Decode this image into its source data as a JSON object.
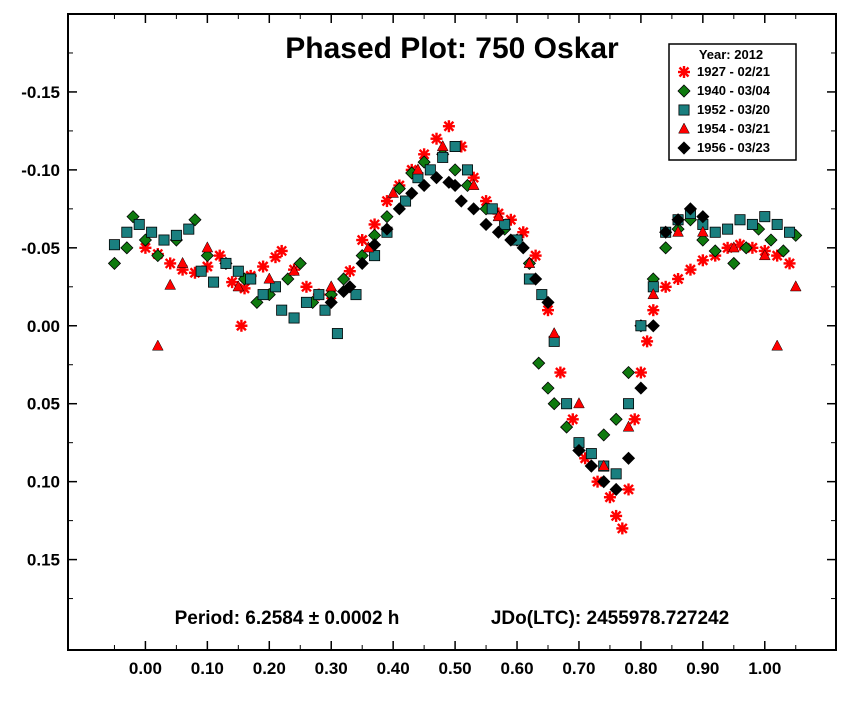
{
  "chart_data": {
    "type": "scatter",
    "title": "Phased Plot: 750 Oskar",
    "xlabel": "",
    "ylabel": "",
    "xlim": [
      -0.125,
      1.115
    ],
    "ylim": [
      0.208,
      -0.2
    ],
    "y_inverted": true,
    "x_ticks": [
      0.0,
      0.1,
      0.2,
      0.3,
      0.4,
      0.5,
      0.6,
      0.7,
      0.8,
      0.9,
      1.0
    ],
    "x_tick_labels": [
      "0.00",
      "0.10",
      "0.20",
      "0.30",
      "0.40",
      "0.50",
      "0.60",
      "0.70",
      "0.80",
      "0.90",
      "1.00"
    ],
    "y_ticks": [
      -0.15,
      -0.1,
      -0.05,
      0.0,
      0.05,
      0.1,
      0.15
    ],
    "y_tick_labels": [
      "-0.15",
      "-0.10",
      "-0.05",
      "0.00",
      "0.05",
      "0.10",
      "0.15"
    ],
    "grid": false,
    "legend": {
      "title": "Year: 2012",
      "placement": "top-right"
    },
    "annotations": {
      "period": "Period: 6.2584 ± 0.0002 h",
      "epoch": "JDo(LTC): 2455978.727242"
    },
    "series": [
      {
        "name": "1927 - 02/21",
        "marker": "asterisk",
        "color": "#ff0000",
        "points": [
          [
            0.0,
            -0.05
          ],
          [
            0.02,
            -0.046
          ],
          [
            0.04,
            -0.04
          ],
          [
            0.06,
            -0.036
          ],
          [
            0.08,
            -0.034
          ],
          [
            0.1,
            -0.038
          ],
          [
            0.12,
            -0.045
          ],
          [
            0.14,
            -0.028
          ],
          [
            0.16,
            -0.024
          ],
          [
            0.17,
            -0.032
          ],
          [
            0.19,
            -0.038
          ],
          [
            0.21,
            -0.044
          ],
          [
            0.22,
            -0.048
          ],
          [
            0.24,
            -0.036
          ],
          [
            0.26,
            -0.025
          ],
          [
            0.28,
            -0.02
          ],
          [
            0.3,
            -0.02
          ],
          [
            0.33,
            -0.035
          ],
          [
            0.35,
            -0.055
          ],
          [
            0.37,
            -0.065
          ],
          [
            0.39,
            -0.08
          ],
          [
            0.41,
            -0.09
          ],
          [
            0.43,
            -0.1
          ],
          [
            0.45,
            -0.11
          ],
          [
            0.47,
            -0.12
          ],
          [
            0.49,
            -0.128
          ],
          [
            0.51,
            -0.115
          ],
          [
            0.53,
            -0.095
          ],
          [
            0.55,
            -0.08
          ],
          [
            0.57,
            -0.072
          ],
          [
            0.59,
            -0.068
          ],
          [
            0.61,
            -0.06
          ],
          [
            0.63,
            -0.045
          ],
          [
            0.65,
            -0.01
          ],
          [
            0.67,
            0.03
          ],
          [
            0.69,
            0.06
          ],
          [
            0.71,
            0.085
          ],
          [
            0.73,
            0.1
          ],
          [
            0.75,
            0.11
          ],
          [
            0.76,
            0.122
          ],
          [
            0.77,
            0.13
          ],
          [
            0.78,
            0.105
          ],
          [
            0.79,
            0.06
          ],
          [
            0.8,
            0.03
          ],
          [
            0.81,
            0.01
          ],
          [
            0.82,
            -0.01
          ],
          [
            0.84,
            -0.025
          ],
          [
            0.86,
            -0.03
          ],
          [
            0.88,
            -0.036
          ],
          [
            0.9,
            -0.042
          ],
          [
            0.92,
            -0.045
          ],
          [
            0.94,
            -0.05
          ],
          [
            0.96,
            -0.052
          ],
          [
            0.98,
            -0.05
          ],
          [
            1.0,
            -0.048
          ],
          [
            1.02,
            -0.045
          ],
          [
            1.04,
            -0.04
          ],
          [
            0.155,
            0.0
          ]
        ]
      },
      {
        "name": "1940 - 03/04",
        "marker": "diamond",
        "color": "#0f7a0f",
        "points": [
          [
            -0.05,
            -0.04
          ],
          [
            -0.03,
            -0.05
          ],
          [
            -0.02,
            -0.07
          ],
          [
            0.0,
            -0.055
          ],
          [
            0.02,
            -0.045
          ],
          [
            0.05,
            -0.055
          ],
          [
            0.08,
            -0.068
          ],
          [
            0.1,
            -0.045
          ],
          [
            0.13,
            -0.04
          ],
          [
            0.16,
            -0.03
          ],
          [
            0.18,
            -0.015
          ],
          [
            0.2,
            -0.02
          ],
          [
            0.23,
            -0.03
          ],
          [
            0.25,
            -0.04
          ],
          [
            0.27,
            -0.015
          ],
          [
            0.3,
            -0.02
          ],
          [
            0.32,
            -0.03
          ],
          [
            0.35,
            -0.045
          ],
          [
            0.37,
            -0.058
          ],
          [
            0.39,
            -0.07
          ],
          [
            0.41,
            -0.088
          ],
          [
            0.43,
            -0.098
          ],
          [
            0.45,
            -0.105
          ],
          [
            0.48,
            -0.11
          ],
          [
            0.5,
            -0.1
          ],
          [
            0.52,
            -0.09
          ],
          [
            0.55,
            -0.075
          ],
          [
            0.58,
            -0.062
          ],
          [
            0.6,
            -0.055
          ],
          [
            0.62,
            -0.04
          ],
          [
            0.635,
            0.024
          ],
          [
            0.65,
            0.04
          ],
          [
            0.66,
            0.05
          ],
          [
            0.68,
            0.065
          ],
          [
            0.7,
            0.08
          ],
          [
            0.72,
            0.09
          ],
          [
            0.74,
            0.07
          ],
          [
            0.76,
            0.06
          ],
          [
            0.78,
            0.03
          ],
          [
            0.8,
            0.0
          ],
          [
            0.82,
            -0.03
          ],
          [
            0.84,
            -0.05
          ],
          [
            0.86,
            -0.062
          ],
          [
            0.88,
            -0.068
          ],
          [
            0.9,
            -0.055
          ],
          [
            0.92,
            -0.048
          ],
          [
            0.95,
            -0.04
          ],
          [
            0.97,
            -0.05
          ],
          [
            0.99,
            -0.062
          ],
          [
            1.01,
            -0.055
          ],
          [
            1.03,
            -0.048
          ],
          [
            1.05,
            -0.058
          ]
        ]
      },
      {
        "name": "1952 - 03/20",
        "marker": "square",
        "color": "#1a7f7f",
        "points": [
          [
            -0.05,
            -0.052
          ],
          [
            -0.03,
            -0.06
          ],
          [
            -0.01,
            -0.065
          ],
          [
            0.01,
            -0.06
          ],
          [
            0.03,
            -0.055
          ],
          [
            0.05,
            -0.058
          ],
          [
            0.07,
            -0.062
          ],
          [
            0.09,
            -0.035
          ],
          [
            0.11,
            -0.028
          ],
          [
            0.13,
            -0.04
          ],
          [
            0.15,
            -0.035
          ],
          [
            0.17,
            -0.03
          ],
          [
            0.19,
            -0.02
          ],
          [
            0.21,
            -0.025
          ],
          [
            0.22,
            -0.01
          ],
          [
            0.24,
            -0.005
          ],
          [
            0.26,
            -0.015
          ],
          [
            0.28,
            -0.02
          ],
          [
            0.29,
            -0.01
          ],
          [
            0.31,
            0.005
          ],
          [
            0.34,
            -0.02
          ],
          [
            0.37,
            -0.045
          ],
          [
            0.39,
            -0.06
          ],
          [
            0.42,
            -0.08
          ],
          [
            0.44,
            -0.095
          ],
          [
            0.46,
            -0.1
          ],
          [
            0.48,
            -0.108
          ],
          [
            0.5,
            -0.115
          ],
          [
            0.52,
            -0.1
          ],
          [
            0.56,
            -0.075
          ],
          [
            0.58,
            -0.065
          ],
          [
            0.6,
            -0.055
          ],
          [
            0.62,
            -0.03
          ],
          [
            0.64,
            -0.02
          ],
          [
            0.66,
            0.01
          ],
          [
            0.68,
            0.05
          ],
          [
            0.7,
            0.075
          ],
          [
            0.72,
            0.082
          ],
          [
            0.74,
            0.09
          ],
          [
            0.76,
            0.095
          ],
          [
            0.78,
            0.05
          ],
          [
            0.8,
            0.0
          ],
          [
            0.82,
            -0.025
          ],
          [
            0.84,
            -0.06
          ],
          [
            0.86,
            -0.068
          ],
          [
            0.88,
            -0.072
          ],
          [
            0.9,
            -0.065
          ],
          [
            0.92,
            -0.06
          ],
          [
            0.94,
            -0.062
          ],
          [
            0.96,
            -0.068
          ],
          [
            0.98,
            -0.065
          ],
          [
            1.0,
            -0.07
          ],
          [
            1.02,
            -0.065
          ],
          [
            1.04,
            -0.06
          ]
        ]
      },
      {
        "name": "1954 - 03/21",
        "marker": "triangle",
        "color": "#ff0000",
        "points": [
          [
            0.04,
            -0.026
          ],
          [
            0.02,
            0.013
          ],
          [
            0.06,
            -0.04
          ],
          [
            0.1,
            -0.05
          ],
          [
            0.15,
            -0.025
          ],
          [
            0.2,
            -0.03
          ],
          [
            0.24,
            -0.035
          ],
          [
            0.3,
            -0.025
          ],
          [
            0.36,
            -0.05
          ],
          [
            0.4,
            -0.085
          ],
          [
            0.44,
            -0.1
          ],
          [
            0.48,
            -0.115
          ],
          [
            0.53,
            -0.09
          ],
          [
            0.57,
            -0.07
          ],
          [
            0.62,
            -0.04
          ],
          [
            0.66,
            0.005
          ],
          [
            0.7,
            0.05
          ],
          [
            0.74,
            0.09
          ],
          [
            0.78,
            0.065
          ],
          [
            0.82,
            -0.02
          ],
          [
            0.86,
            -0.06
          ],
          [
            0.9,
            -0.06
          ],
          [
            0.95,
            -0.05
          ],
          [
            1.0,
            -0.045
          ],
          [
            1.02,
            0.013
          ],
          [
            1.05,
            -0.025
          ]
        ]
      },
      {
        "name": "1956 - 03/23",
        "marker": "diamond",
        "color": "#000000",
        "points": [
          [
            0.3,
            -0.015
          ],
          [
            0.32,
            -0.022
          ],
          [
            0.33,
            -0.025
          ],
          [
            0.35,
            -0.04
          ],
          [
            0.37,
            -0.052
          ],
          [
            0.39,
            -0.062
          ],
          [
            0.41,
            -0.075
          ],
          [
            0.43,
            -0.085
          ],
          [
            0.45,
            -0.09
          ],
          [
            0.47,
            -0.095
          ],
          [
            0.49,
            -0.092
          ],
          [
            0.5,
            -0.09
          ],
          [
            0.51,
            -0.08
          ],
          [
            0.53,
            -0.075
          ],
          [
            0.55,
            -0.065
          ],
          [
            0.57,
            -0.06
          ],
          [
            0.59,
            -0.055
          ],
          [
            0.61,
            -0.05
          ],
          [
            0.63,
            -0.03
          ],
          [
            0.65,
            -0.015
          ],
          [
            0.7,
            0.08
          ],
          [
            0.72,
            0.09
          ],
          [
            0.74,
            0.1
          ],
          [
            0.76,
            0.105
          ],
          [
            0.78,
            0.085
          ],
          [
            0.8,
            0.04
          ],
          [
            0.82,
            0.0
          ],
          [
            0.84,
            -0.06
          ],
          [
            0.86,
            -0.068
          ],
          [
            0.88,
            -0.075
          ],
          [
            0.9,
            -0.07
          ]
        ]
      }
    ]
  }
}
